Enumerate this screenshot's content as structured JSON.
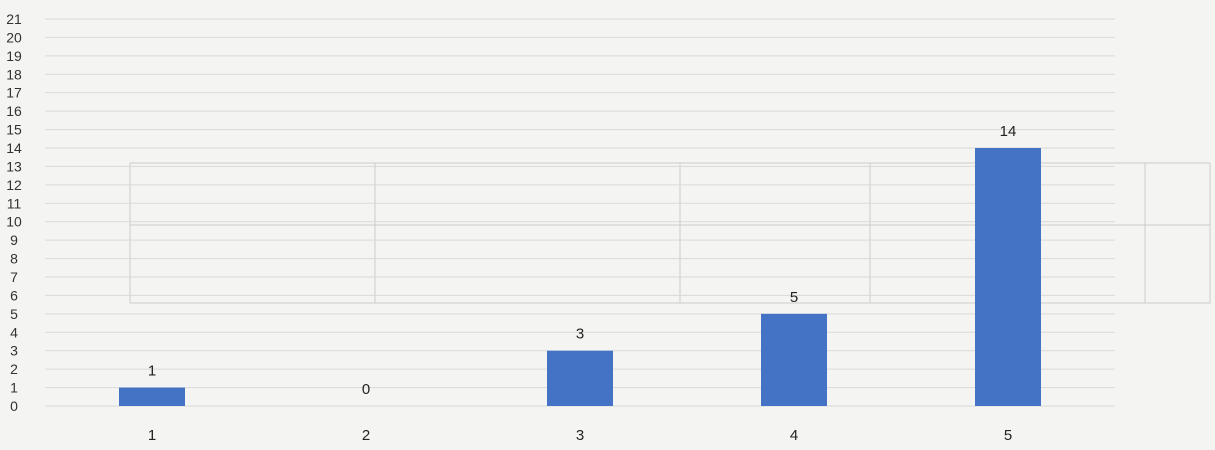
{
  "chart_data": {
    "type": "bar",
    "categories": [
      "1",
      "2",
      "3",
      "4",
      "5"
    ],
    "values": [
      1,
      0,
      3,
      5,
      14
    ],
    "ylim": [
      0,
      21
    ],
    "yticks": [
      0,
      1,
      2,
      3,
      4,
      5,
      6,
      7,
      8,
      9,
      10,
      11,
      12,
      13,
      14,
      15,
      16,
      17,
      18,
      19,
      20,
      21
    ],
    "grid": true,
    "bar_color": "#4472c4",
    "gridline_color": "#d9d9d9",
    "title": "",
    "xlabel": "",
    "ylabel": ""
  }
}
